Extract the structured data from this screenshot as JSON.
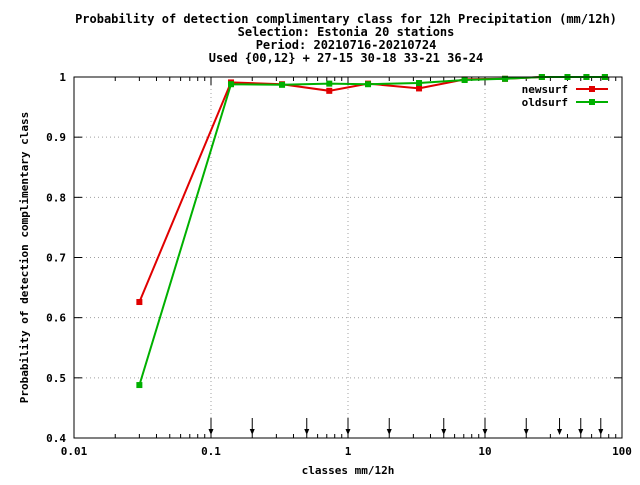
{
  "chart_data": {
    "type": "line",
    "title_lines": [
      "Probability of detection complimentary class  for 12h Precipitation (mm/12h)",
      "Selection: Estonia     20 stations",
      "Period: 20210716-20210724",
      "Used {00,12} + 27-15 30-18 33-21 36-24"
    ],
    "xlabel": "classes mm/12h",
    "ylabel": "Probability of detection complimentary class",
    "x_scale": "log",
    "xlim": [
      0.01,
      100
    ],
    "ylim": [
      0.4,
      1.0
    ],
    "x_ticks": [
      {
        "value": 0.01,
        "label": "0.01"
      },
      {
        "value": 0.1,
        "label": "0.1"
      },
      {
        "value": 1,
        "label": "1"
      },
      {
        "value": 10,
        "label": "10"
      },
      {
        "value": 100,
        "label": "100"
      }
    ],
    "y_ticks": [
      {
        "value": 0.4,
        "label": "0.4"
      },
      {
        "value": 0.5,
        "label": "0.5"
      },
      {
        "value": 0.6,
        "label": "0.6"
      },
      {
        "value": 0.7,
        "label": "0.7"
      },
      {
        "value": 0.8,
        "label": "0.8"
      },
      {
        "value": 0.9,
        "label": "0.9"
      },
      {
        "value": 1.0,
        "label": "1"
      }
    ],
    "grid": true,
    "legend_position": "top-right",
    "class_markers": [
      0.1,
      0.2,
      0.5,
      1,
      2,
      5,
      10,
      20,
      35,
      50,
      70
    ],
    "series": [
      {
        "name": "newsurf",
        "color": "#e00000",
        "x": [
          0.03,
          0.14,
          0.33,
          0.73,
          1.4,
          3.3,
          7.1,
          14,
          26,
          40,
          55,
          75
        ],
        "y": [
          0.626,
          0.991,
          0.988,
          0.977,
          0.989,
          0.981,
          0.996,
          0.997,
          1.0,
          1.0,
          1.0,
          1.0
        ]
      },
      {
        "name": "oldsurf",
        "color": "#00b000",
        "x": [
          0.03,
          0.14,
          0.33,
          0.73,
          1.4,
          3.3,
          7.1,
          14,
          26,
          40,
          55,
          75
        ],
        "y": [
          0.488,
          0.988,
          0.987,
          0.989,
          0.988,
          0.99,
          0.995,
          0.997,
          1.0,
          1.0,
          1.0,
          1.0
        ]
      }
    ]
  }
}
